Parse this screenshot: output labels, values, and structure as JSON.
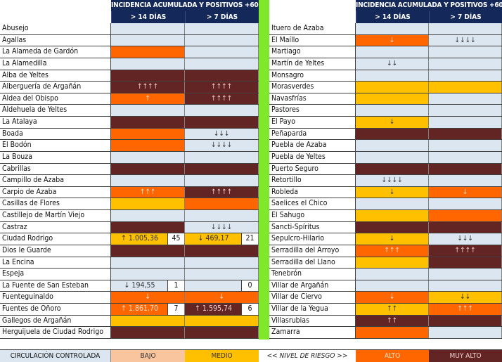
{
  "header": {
    "title": "INCIDENCIA ACUMULADA Y POSITIVOS +60 AÑOS",
    "col_14": "> 14 DÍAS",
    "col_7": "> 7 DÍAS"
  },
  "colors": {
    "header_navy": "#14285a",
    "separator_green": "#7fe82a",
    "controlada_lightblue": "#dce6f0",
    "bajo": "#f8c59e",
    "medio": "#ffc000",
    "alto": "#ff6600",
    "muy_alto": "#632523"
  },
  "left": [
    {
      "name": "Abusejo",
      "c14": {
        "level": "lb",
        "text": ""
      },
      "c7": {
        "level": "lb",
        "text": ""
      }
    },
    {
      "name": "Agallas",
      "c14": {
        "level": "lb",
        "text": ""
      },
      "c7": {
        "level": "lb",
        "text": ""
      }
    },
    {
      "name": "La Alameda de Gardón",
      "c14": {
        "level": "or",
        "text": ""
      },
      "c7": {
        "level": "lb",
        "text": ""
      }
    },
    {
      "name": "La Alamedilla",
      "c14": {
        "level": "lb",
        "text": ""
      },
      "c7": {
        "level": "lb",
        "text": ""
      }
    },
    {
      "name": "Alba de Yeltes",
      "c14": {
        "level": "dr",
        "text": ""
      },
      "c7": {
        "level": "dr",
        "text": ""
      }
    },
    {
      "name": "Alberguería de Argañán",
      "c14": {
        "level": "dr",
        "text": "↑↑↑↑"
      },
      "c7": {
        "level": "dr",
        "text": "↑↑↑↑"
      }
    },
    {
      "name": "Aldea del Obispo",
      "c14": {
        "level": "or",
        "text": "↑"
      },
      "c7": {
        "level": "dr",
        "text": "↑↑↑↑"
      }
    },
    {
      "name": "Aldehuela de Yeltes",
      "c14": {
        "level": "lb",
        "text": ""
      },
      "c7": {
        "level": "lb",
        "text": ""
      }
    },
    {
      "name": "La Atalaya",
      "c14": {
        "level": "dr",
        "text": ""
      },
      "c7": {
        "level": "dr",
        "text": ""
      }
    },
    {
      "name": "Boada",
      "c14": {
        "level": "or",
        "text": ""
      },
      "c7": {
        "level": "lb",
        "text": "↓↓↓"
      }
    },
    {
      "name": "El Bodón",
      "c14": {
        "level": "or",
        "text": ""
      },
      "c7": {
        "level": "lb",
        "text": "↓↓↓↓"
      }
    },
    {
      "name": "La Bouza",
      "c14": {
        "level": "lb",
        "text": ""
      },
      "c7": {
        "level": "lb",
        "text": ""
      }
    },
    {
      "name": "Cabrillas",
      "c14": {
        "level": "dr",
        "text": ""
      },
      "c7": {
        "level": "dr",
        "text": ""
      }
    },
    {
      "name": "Campillo de Azaba",
      "c14": {
        "level": "lb",
        "text": ""
      },
      "c7": {
        "level": "lb",
        "text": ""
      }
    },
    {
      "name": "Carpio de Azaba",
      "c14": {
        "level": "or",
        "text": "↑↑↑"
      },
      "c7": {
        "level": "dr",
        "text": "↑↑↑↑"
      }
    },
    {
      "name": "Casillas de Flores",
      "c14": {
        "level": "ye",
        "text": ""
      },
      "c7": {
        "level": "or",
        "text": ""
      }
    },
    {
      "name": "Castillejo de Martín Viejo",
      "c14": {
        "level": "lb",
        "text": ""
      },
      "c7": {
        "level": "lb",
        "text": ""
      }
    },
    {
      "name": "Castraz",
      "c14": {
        "level": "dr",
        "text": ""
      },
      "c7": {
        "level": "lb",
        "text": "↓↓↓↓"
      }
    },
    {
      "name": "Ciudad Rodrigo",
      "c14": {
        "level": "ye",
        "text": "↑ 1.005,36",
        "count": "45"
      },
      "c7": {
        "level": "ye",
        "text": "↓ 469,17",
        "count": "21"
      }
    },
    {
      "name": "Dios le Guarde",
      "c14": {
        "level": "dr",
        "text": ""
      },
      "c7": {
        "level": "dr",
        "text": ""
      }
    },
    {
      "name": "La Encina",
      "c14": {
        "level": "lb",
        "text": ""
      },
      "c7": {
        "level": "lb",
        "text": ""
      }
    },
    {
      "name": "Espeja",
      "c14": {
        "level": "lb",
        "text": ""
      },
      "c7": {
        "level": "lb",
        "text": ""
      }
    },
    {
      "name": "La Fuente de San Esteban",
      "c14": {
        "level": "lb",
        "text": "↓ 194,55",
        "count": "1"
      },
      "c7": {
        "level": "lb",
        "text": "",
        "count": "0"
      }
    },
    {
      "name": "Fuenteguinaldo",
      "c14": {
        "level": "or",
        "text": "↓"
      },
      "c7": {
        "level": "or",
        "text": "↓"
      }
    },
    {
      "name": "Fuentes de Oñoro",
      "c14": {
        "level": "or",
        "text": "↑ 1.861,70",
        "count": "7"
      },
      "c7": {
        "level": "dr",
        "text": "↑ 1.595,74",
        "count": "6"
      }
    },
    {
      "name": "Gallegos de Argañán",
      "c14": {
        "level": "ye",
        "text": ""
      },
      "c7": {
        "level": "ye",
        "text": ""
      }
    },
    {
      "name": "Herguijuela de Ciudad Rodrigo",
      "c14": {
        "level": "dr",
        "text": ""
      },
      "c7": {
        "level": "dr",
        "text": ""
      }
    }
  ],
  "right": [
    {
      "name": "Ituero de Azaba",
      "c14": {
        "level": "lb",
        "text": ""
      },
      "c7": {
        "level": "lb",
        "text": ""
      }
    },
    {
      "name": "El Maíllo",
      "c14": {
        "level": "or",
        "text": "↓"
      },
      "c7": {
        "level": "lb",
        "text": "↓↓↓↓"
      }
    },
    {
      "name": "Martiago",
      "c14": {
        "level": "lb",
        "text": ""
      },
      "c7": {
        "level": "lb",
        "text": ""
      }
    },
    {
      "name": "Martín de Yeltes",
      "c14": {
        "level": "lb",
        "text": "↓↓"
      },
      "c7": {
        "level": "lb",
        "text": ""
      }
    },
    {
      "name": "Monsagro",
      "c14": {
        "level": "lb",
        "text": ""
      },
      "c7": {
        "level": "lb",
        "text": ""
      }
    },
    {
      "name": "Morasverdes",
      "c14": {
        "level": "ye",
        "text": ""
      },
      "c7": {
        "level": "ye",
        "text": ""
      }
    },
    {
      "name": "Navasfrías",
      "c14": {
        "level": "ye",
        "text": ""
      },
      "c7": {
        "level": "lb",
        "text": ""
      }
    },
    {
      "name": "Pastores",
      "c14": {
        "level": "lb",
        "text": ""
      },
      "c7": {
        "level": "lb",
        "text": ""
      }
    },
    {
      "name": "El Payo",
      "c14": {
        "level": "ye",
        "text": "↓"
      },
      "c7": {
        "level": "lb",
        "text": ""
      }
    },
    {
      "name": "Peñaparda",
      "c14": {
        "level": "dr",
        "text": ""
      },
      "c7": {
        "level": "dr",
        "text": ""
      }
    },
    {
      "name": "Puebla de Azaba",
      "c14": {
        "level": "lb",
        "text": ""
      },
      "c7": {
        "level": "lb",
        "text": ""
      }
    },
    {
      "name": "Puebla de Yeltes",
      "c14": {
        "level": "lb",
        "text": ""
      },
      "c7": {
        "level": "lb",
        "text": ""
      }
    },
    {
      "name": "Puerto Seguro",
      "c14": {
        "level": "dr",
        "text": ""
      },
      "c7": {
        "level": "dr",
        "text": ""
      }
    },
    {
      "name": "Retortillo",
      "c14": {
        "level": "lb",
        "text": "↓↓↓↓"
      },
      "c7": {
        "level": "lb",
        "text": ""
      }
    },
    {
      "name": "Robleda",
      "c14": {
        "level": "ye",
        "text": "↓"
      },
      "c7": {
        "level": "or",
        "text": "↓"
      }
    },
    {
      "name": "Saelices el Chico",
      "c14": {
        "level": "lb",
        "text": ""
      },
      "c7": {
        "level": "lb",
        "text": ""
      }
    },
    {
      "name": "El Sahugo",
      "c14": {
        "level": "ye",
        "text": ""
      },
      "c7": {
        "level": "or",
        "text": ""
      }
    },
    {
      "name": "Sancti-Spíritus",
      "c14": {
        "level": "dr",
        "text": ""
      },
      "c7": {
        "level": "dr",
        "text": ""
      }
    },
    {
      "name": "Sepulcro-Hilario",
      "c14": {
        "level": "ye",
        "text": "↓"
      },
      "c7": {
        "level": "lb",
        "text": "↓↓↓"
      }
    },
    {
      "name": "Serradilla del Arroyo",
      "c14": {
        "level": "or",
        "text": "↑↑↑"
      },
      "c7": {
        "level": "dr",
        "text": "↑↑↑↑"
      }
    },
    {
      "name": "Serradilla del Llano",
      "c14": {
        "level": "ye",
        "text": ""
      },
      "c7": {
        "level": "dr",
        "text": ""
      }
    },
    {
      "name": "Tenebrón",
      "c14": {
        "level": "lb",
        "text": ""
      },
      "c7": {
        "level": "lb",
        "text": ""
      }
    },
    {
      "name": "Villar de Argañán",
      "c14": {
        "level": "lb",
        "text": ""
      },
      "c7": {
        "level": "lb",
        "text": ""
      }
    },
    {
      "name": "Villar de Ciervo",
      "c14": {
        "level": "or",
        "text": "↓"
      },
      "c7": {
        "level": "ye",
        "text": "↓↓"
      }
    },
    {
      "name": "Villar de la Yegua",
      "c14": {
        "level": "ye",
        "text": "↑↑"
      },
      "c7": {
        "level": "or",
        "text": "↑↑↑"
      }
    },
    {
      "name": "Villasrubias",
      "c14": {
        "level": "dr",
        "text": "↑↑"
      },
      "c7": {
        "level": "dr",
        "text": ""
      }
    },
    {
      "name": "Zamarra",
      "c14": {
        "level": "or",
        "text": ""
      },
      "c7": {
        "level": "lb",
        "text": ""
      }
    }
  ],
  "legend": {
    "controlada": "CIRCULACIÓN CONTROLADA",
    "bajo": "BAJO",
    "medio": "MEDIO",
    "nivel": "<< NIVEL DE RIESGO >>",
    "alto": "ALTO",
    "muy_alto": "MUY ALTO"
  }
}
